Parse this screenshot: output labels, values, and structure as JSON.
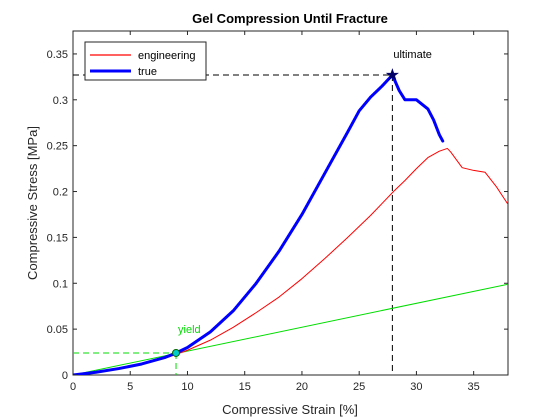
{
  "chart_data": {
    "type": "line",
    "title": "Gel Compression Until Fracture",
    "xlabel": "Compressive Strain [%]",
    "ylabel": "Compressive Stress [MPa]",
    "xlim": [
      0,
      38
    ],
    "ylim": [
      0,
      0.375
    ],
    "xticks": [
      0,
      5,
      10,
      15,
      20,
      25,
      30,
      35
    ],
    "yticks": [
      0,
      0.05,
      0.1,
      0.15,
      0.2,
      0.25,
      0.3,
      0.35
    ],
    "xtick_labels": [
      "0",
      "5",
      "10",
      "15",
      "20",
      "25",
      "30",
      "35"
    ],
    "ytick_labels": [
      "0",
      "0.05",
      "0.1",
      "0.15",
      "0.2",
      "0.25",
      "0.3",
      "0.35"
    ],
    "legend_position": "top-left",
    "grid": false,
    "series": [
      {
        "name": "engineering",
        "color": "#ff0000",
        "x": [
          0,
          2,
          4,
          6,
          8,
          9,
          10,
          12,
          14,
          16,
          18,
          20,
          22,
          24,
          26,
          27,
          28,
          29,
          30,
          31,
          32,
          32.7,
          33,
          34,
          35,
          36,
          37,
          38
        ],
        "y": [
          0,
          0.003,
          0.007,
          0.012,
          0.018,
          0.0225,
          0.027,
          0.038,
          0.052,
          0.068,
          0.085,
          0.105,
          0.127,
          0.15,
          0.174,
          0.187,
          0.2,
          0.212,
          0.225,
          0.237,
          0.244,
          0.247,
          0.243,
          0.226,
          0.223,
          0.221,
          0.205,
          0.186
        ]
      },
      {
        "name": "true",
        "color": "#0000ff",
        "x": [
          0,
          2,
          4,
          6,
          8,
          9,
          10,
          12,
          14,
          16,
          18,
          20,
          22,
          24,
          25,
          26,
          27,
          27.9,
          28.5,
          29,
          30,
          31,
          31.5,
          32,
          32.3
        ],
        "y": [
          0,
          0.003,
          0.007,
          0.012,
          0.019,
          0.024,
          0.03,
          0.047,
          0.07,
          0.1,
          0.135,
          0.175,
          0.22,
          0.265,
          0.288,
          0.303,
          0.315,
          0.327,
          0.31,
          0.3,
          0.3,
          0.29,
          0.278,
          0.262,
          0.255
        ]
      }
    ],
    "yield_line": {
      "color": "#00dd00",
      "x": [
        0,
        38
      ],
      "y": [
        0,
        0.099
      ]
    },
    "annotations": [
      {
        "text": "yield",
        "x": 9,
        "y": 0.024,
        "color": "#00dd00"
      },
      {
        "text": "ultimate",
        "x": 27.9,
        "y": 0.327,
        "color": "#000000"
      }
    ]
  }
}
